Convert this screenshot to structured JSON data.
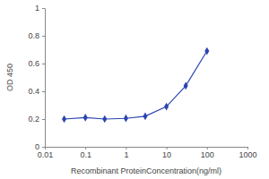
{
  "chart_data": {
    "type": "line",
    "x_label": "Recombinant ProteinConcentration(ng/ml)",
    "y_label": "OD 450",
    "x": [
      0.03,
      0.1,
      0.3,
      1,
      3,
      10,
      30,
      100
    ],
    "values": [
      0.2,
      0.21,
      0.2,
      0.205,
      0.22,
      0.29,
      0.44,
      0.69
    ],
    "color": "#2a45b0",
    "marker": "diamond",
    "log": "x",
    "xlim": [
      0.01,
      1000
    ],
    "xticks": [
      0.01,
      0.1,
      1,
      10,
      100,
      1000
    ],
    "ylim": [
      0,
      1
    ],
    "yticks": [
      0,
      0.2,
      0.4,
      0.6,
      0.8,
      1
    ],
    "grid": false
  }
}
